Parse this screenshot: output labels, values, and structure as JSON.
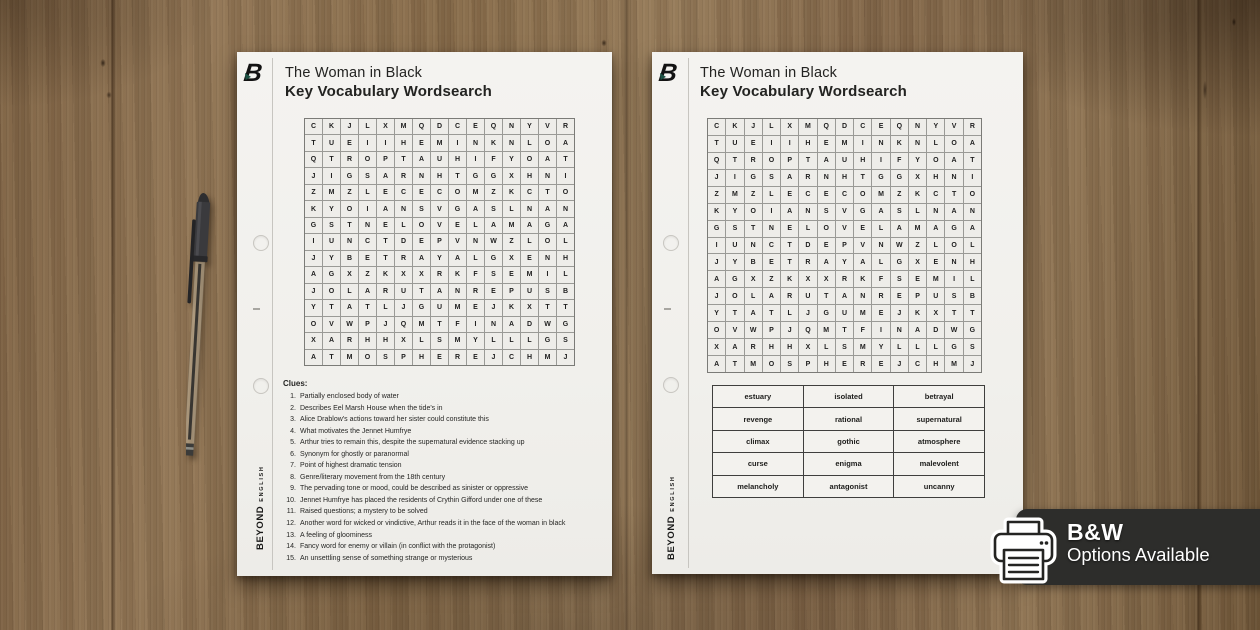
{
  "brand": {
    "logo_letter": "B",
    "vertical_primary": "BEYOND",
    "vertical_secondary": "ENGLISH"
  },
  "worksheet": {
    "title": "The Woman in Black",
    "subtitle": "Key Vocabulary Wordsearch",
    "grid_rows": [
      "CKJLXMQDCEQNYVR",
      "TUEIIHEMINKNLOA",
      "QTROPTAUHIFYOAT",
      "JIGSARNHTGGXHNI",
      "ZMZLECECOMZKCTO",
      "KYOIANSVGASLNAN",
      "GSTNELOVELAMAGA",
      "IUNCTDEPVNWZLOL",
      "JYBETRAYALGXENH",
      "AGXZKXXRKFSEMIL",
      "JOLARUTANREPUSB",
      "YTATLJGUMEJKXTT",
      "OVWPJQMTFINADWG",
      "XARHHXLSMYLLLGS",
      "ATMOSPHEREJCHMJ"
    ],
    "clues_heading": "Clues:",
    "clues": [
      "Partially enclosed body of water",
      "Describes Eel Marsh House when the tide's in",
      "Alice Drablow's actions toward her sister could constitute this",
      "What motivates the Jennet Humfrye",
      "Arthur tries to remain this, despite the supernatural evidence stacking up",
      "Synonym for ghostly or paranormal",
      "Point of highest dramatic tension",
      "Genre/literary movement from the 18th century",
      "The pervading tone or mood, could be described as sinister or oppressive",
      "Jennet Humfrye has placed the residents of Crythin Gifford under one of these",
      "Raised questions; a mystery to be solved",
      "Another word for wicked or vindictive, Arthur reads it in the face of the woman in black",
      "A feeling of gloominess",
      "Fancy word for enemy or villain (in conflict with the protagonist)",
      "An unsettling sense of something strange or mysterious"
    ],
    "word_bank_rows": [
      [
        "estuary",
        "isolated",
        "betrayal"
      ],
      [
        "revenge",
        "rational",
        "supernatural"
      ],
      [
        "climax",
        "gothic",
        "atmosphere"
      ],
      [
        "curse",
        "enigma",
        "malevolent"
      ],
      [
        "melancholy",
        "antagonist",
        "uncanny"
      ]
    ]
  },
  "badge": {
    "heading": "B&W",
    "subheading": "Options Available",
    "icon": "printer-icon"
  },
  "colors": {
    "badge_bg": "#2d2d2b",
    "page_bg": "#f2f1ee",
    "accent_green": "#1d5244",
    "wood_base": "#8a6f4e"
  }
}
